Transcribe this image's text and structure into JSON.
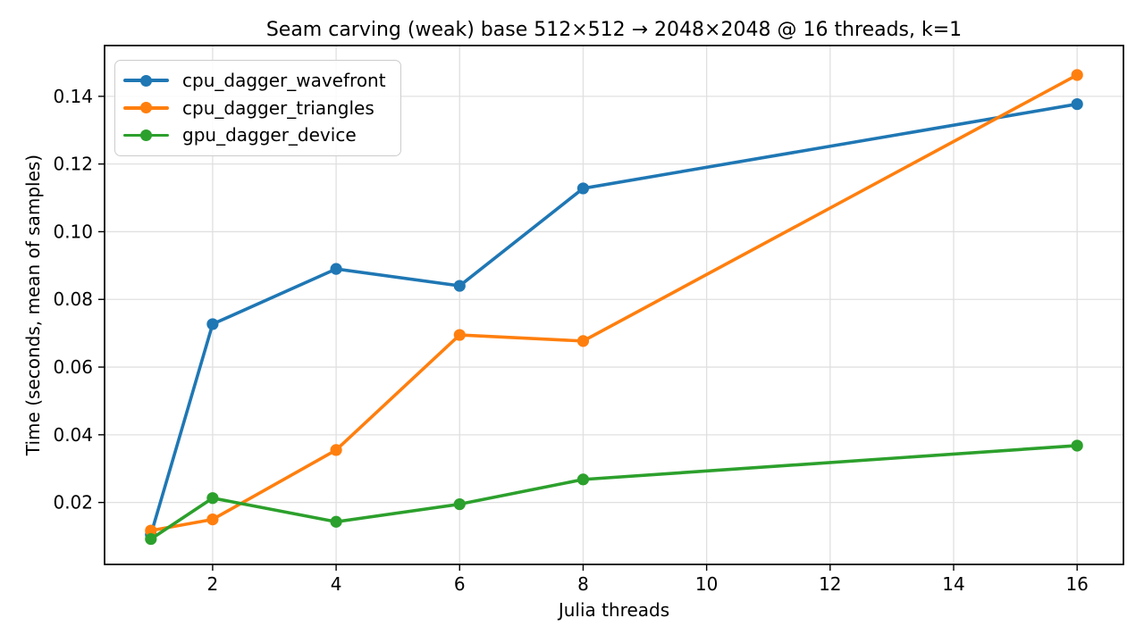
{
  "chart_data": {
    "type": "line",
    "title": "Seam carving (weak) base 512×512 → 2048×2048 @ 16 threads, k=1",
    "xlabel": "Julia threads",
    "ylabel": "Time (seconds, mean of samples)",
    "x": [
      1,
      2,
      4,
      6,
      8,
      16
    ],
    "series": [
      {
        "name": "cpu_dagger_wavefront",
        "color": "#1f77b4",
        "values": [
          0.0105,
          0.0727,
          0.089,
          0.084,
          0.1128,
          0.1377
        ]
      },
      {
        "name": "cpu_dagger_triangles",
        "color": "#ff7f0e",
        "values": [
          0.0117,
          0.015,
          0.0355,
          0.0695,
          0.0677,
          0.1463
        ]
      },
      {
        "name": "gpu_dagger_device",
        "color": "#2ca02c",
        "values": [
          0.0092,
          0.0213,
          0.0143,
          0.0195,
          0.0268,
          0.0368
        ]
      }
    ],
    "xticks": [
      2,
      4,
      6,
      8,
      10,
      12,
      14,
      16
    ],
    "yticks": [
      0.02,
      0.04,
      0.06,
      0.08,
      0.1,
      0.12,
      0.14
    ],
    "xlim": [
      0.25,
      16.75
    ],
    "ylim": [
      0.0017,
      0.155
    ],
    "grid": true,
    "legend_position": "upper left",
    "background_color": "#ffffff",
    "grid_color": "#e0e0e0",
    "spine_color": "#000000"
  }
}
